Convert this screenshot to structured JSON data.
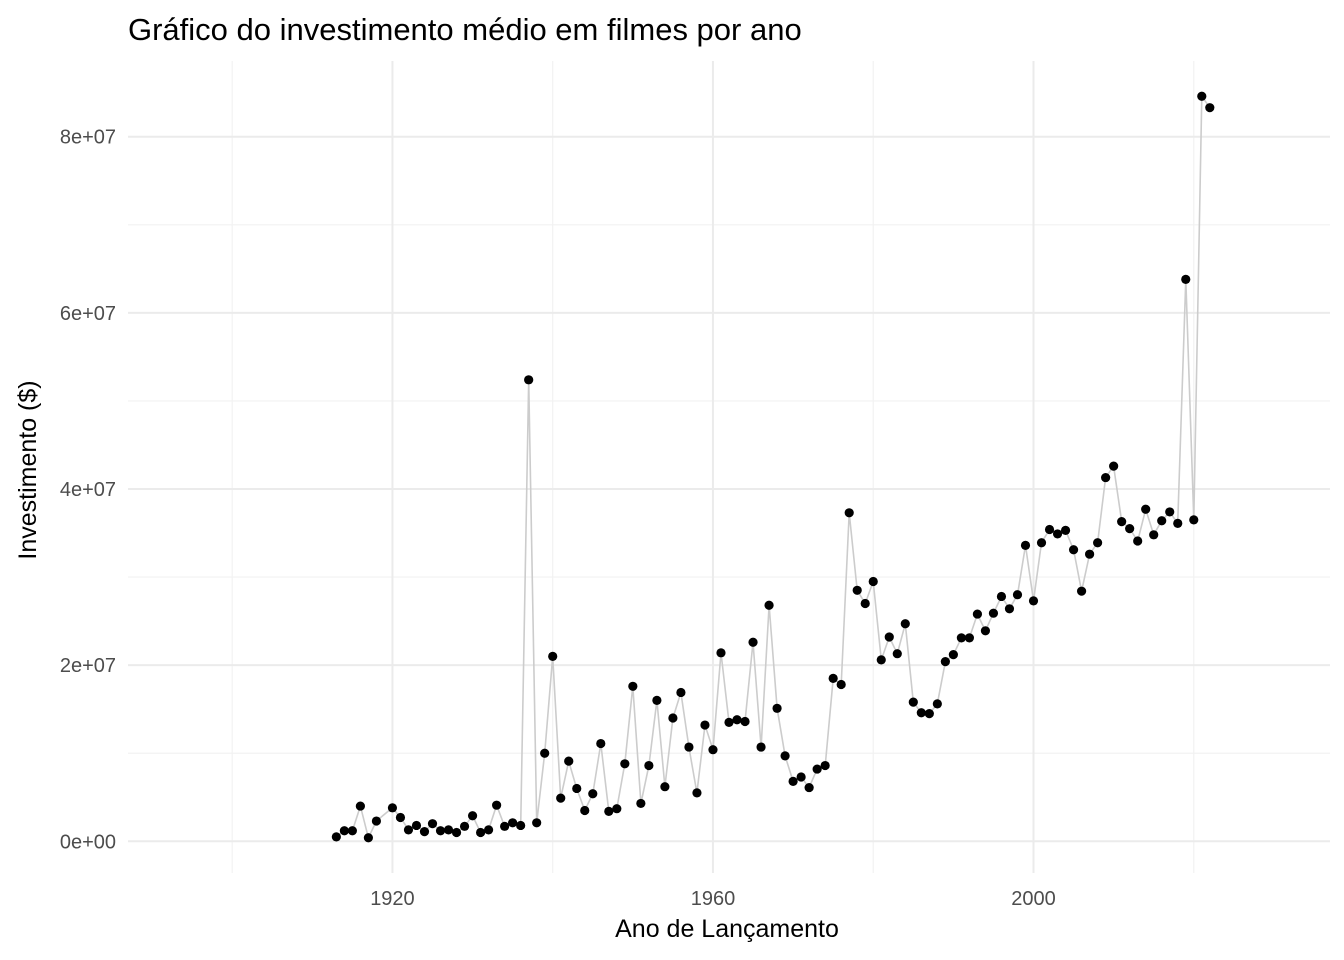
{
  "chart_data": {
    "type": "line",
    "title": "Gráfico do investimento médio em filmes por ano",
    "xlabel": "Ano de Lançamento",
    "ylabel": "Investimento ($)",
    "xlim": [
      1887,
      2037
    ],
    "ylim": [
      -3600000,
      88600000
    ],
    "x_ticks": [
      {
        "value": 1920,
        "label": "1920"
      },
      {
        "value": 1960,
        "label": "1960"
      },
      {
        "value": 2000,
        "label": "2000"
      }
    ],
    "x_minor": [
      1900,
      1940,
      1980,
      2020
    ],
    "y_ticks": [
      {
        "value": 0,
        "label": "0e+00"
      },
      {
        "value": 20000000,
        "label": "2e+07"
      },
      {
        "value": 40000000,
        "label": "4e+07"
      },
      {
        "value": 60000000,
        "label": "6e+07"
      },
      {
        "value": 80000000,
        "label": "8e+07"
      }
    ],
    "y_minor": [
      10000000,
      30000000,
      50000000,
      70000000
    ],
    "grid": true,
    "line_color": "#cccccc",
    "point_color": "#000000",
    "series": [
      {
        "x": [
          1913,
          1914,
          1915,
          1916,
          1917,
          1918,
          1920,
          1921,
          1922,
          1923,
          1924,
          1925,
          1926,
          1927,
          1928,
          1929,
          1930,
          1931,
          1932,
          1933,
          1934,
          1935,
          1936,
          1937,
          1938,
          1939,
          1940,
          1941,
          1942,
          1943,
          1944,
          1945,
          1946,
          1947,
          1948,
          1949,
          1950,
          1951,
          1952,
          1953,
          1954,
          1955,
          1956,
          1957,
          1958,
          1959,
          1960,
          1961,
          1962,
          1963,
          1964,
          1965,
          1966,
          1967,
          1968,
          1969,
          1970,
          1971,
          1972,
          1973,
          1974,
          1975,
          1976,
          1977,
          1978,
          1979,
          1980,
          1981,
          1982,
          1983,
          1984,
          1985,
          1986,
          1987,
          1988,
          1989,
          1990,
          1991,
          1992,
          1993,
          1994,
          1995,
          1996,
          1997,
          1998,
          1999,
          2000,
          2001,
          2002,
          2003,
          2004,
          2005,
          2006,
          2007,
          2008,
          2009,
          2010,
          2011,
          2012,
          2013,
          2014,
          2015,
          2016,
          2017,
          2018,
          2019,
          2020,
          2021,
          2022
        ],
        "y": [
          500000,
          1200000,
          1200000,
          4000000,
          400000,
          2300000,
          3800000,
          2700000,
          1300000,
          1800000,
          1100000,
          2000000,
          1200000,
          1300000,
          1000000,
          1700000,
          2900000,
          1000000,
          1300000,
          4100000,
          1700000,
          2100000,
          1800000,
          52400000,
          2100000,
          10000000,
          21000000,
          4900000,
          9100000,
          6000000,
          3500000,
          5400000,
          11100000,
          3400000,
          3700000,
          8800000,
          17600000,
          4300000,
          8600000,
          16000000,
          6200000,
          14000000,
          16900000,
          10700000,
          5500000,
          13200000,
          10400000,
          21400000,
          13500000,
          13800000,
          13600000,
          22600000,
          10700000,
          26800000,
          15100000,
          9700000,
          6800000,
          7300000,
          6100000,
          8200000,
          8600000,
          18500000,
          17800000,
          37300000,
          28500000,
          27000000,
          29500000,
          20600000,
          23200000,
          21300000,
          24700000,
          15800000,
          14600000,
          14500000,
          15600000,
          20400000,
          21200000,
          23100000,
          23100000,
          25800000,
          23900000,
          25900000,
          27800000,
          26400000,
          28000000,
          33600000,
          27300000,
          33900000,
          35400000,
          34900000,
          35300000,
          33100000,
          28400000,
          32600000,
          33900000,
          41300000,
          42600000,
          36300000,
          35500000,
          34100000,
          37700000,
          34800000,
          36400000,
          37400000,
          36100000,
          63800000,
          36500000,
          84600000,
          83300000
        ]
      }
    ]
  }
}
